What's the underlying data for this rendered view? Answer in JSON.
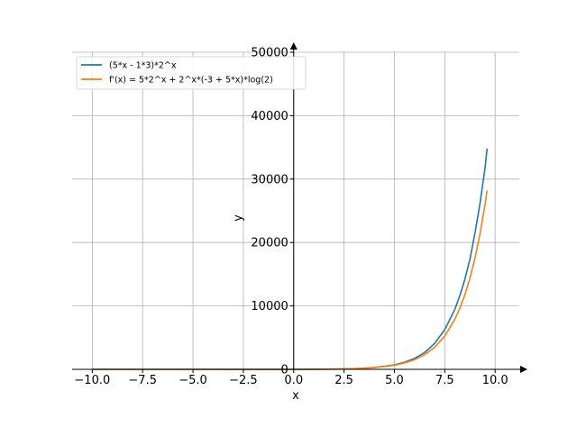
{
  "chart_data": {
    "type": "line",
    "xlabel": "x",
    "ylabel": "y",
    "xlim": [
      -11.0,
      11.2
    ],
    "ylim": [
      0,
      50000
    ],
    "x_ticks": [
      -10.0,
      -7.5,
      -5.0,
      -2.5,
      0.0,
      2.5,
      5.0,
      7.5,
      10.0
    ],
    "x_tick_labels": [
      "−10.0",
      "−7.5",
      "−5.0",
      "−2.5",
      "0.0",
      "2.5",
      "5.0",
      "7.5",
      "10.0"
    ],
    "y_ticks": [
      0,
      10000,
      20000,
      30000,
      40000,
      50000
    ],
    "y_tick_labels": [
      "0",
      "10000",
      "20000",
      "30000",
      "40000",
      "50000"
    ],
    "grid": true,
    "legend_position": "top-left",
    "x": [
      -10,
      -9,
      -8,
      -7,
      -6,
      -5,
      -4,
      -3,
      -2,
      -1,
      0,
      1,
      2,
      3,
      4,
      5,
      5.5,
      6,
      6.5,
      7,
      7.5,
      8,
      8.25,
      8.5,
      8.75,
      9,
      9.25,
      9.5,
      9.6
    ],
    "series": [
      {
        "name": "(5*x - 1*3)*2^x",
        "color": "#1f77b4",
        "values": [
          -0.05,
          -0.09,
          -0.17,
          -0.3,
          -0.52,
          -0.88,
          -1.44,
          -2.25,
          -3.25,
          -4,
          -3,
          4,
          28,
          96,
          272,
          704,
          1119,
          1728,
          2642,
          4096,
          6251,
          9472,
          11612,
          14225,
          17376,
          21504,
          26152,
          31748,
          34794
        ]
      },
      {
        "name": "f'(x) = 5*2^x + 2^x*(-3 + 5*x)*log(2)",
        "color": "#ff7f0e",
        "values": [
          -0.04,
          -0.07,
          -0.13,
          -0.24,
          -0.4,
          -0.67,
          -1.07,
          -1.66,
          -2.33,
          -2.71,
          -0.08,
          12.77,
          39.4,
          106.5,
          268.6,
          648.0,
          1005,
          1518,
          2300,
          3478,
          5250,
          7893,
          9641,
          11777,
          14373,
          17528,
          21359,
          26008,
          28186
        ]
      }
    ]
  }
}
